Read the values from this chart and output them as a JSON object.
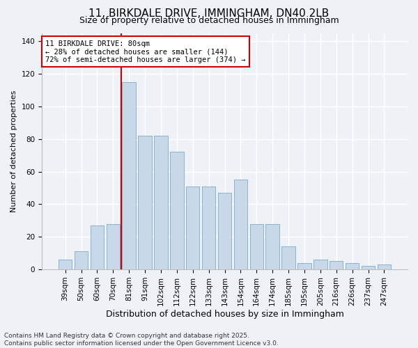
{
  "title": "11, BIRKDALE DRIVE, IMMINGHAM, DN40 2LB",
  "subtitle": "Size of property relative to detached houses in Immingham",
  "xlabel": "Distribution of detached houses by size in Immingham",
  "ylabel": "Number of detached properties",
  "categories": [
    "39sqm",
    "50sqm",
    "60sqm",
    "70sqm",
    "81sqm",
    "91sqm",
    "102sqm",
    "112sqm",
    "122sqm",
    "133sqm",
    "143sqm",
    "154sqm",
    "164sqm",
    "174sqm",
    "185sqm",
    "195sqm",
    "205sqm",
    "216sqm",
    "226sqm",
    "237sqm",
    "247sqm"
  ],
  "values": [
    6,
    11,
    27,
    28,
    115,
    82,
    82,
    72,
    51,
    51,
    47,
    55,
    28,
    28,
    14,
    4,
    6,
    5,
    4,
    2,
    3
  ],
  "bar_color": "#c8d8e8",
  "bar_edge_color": "#7aaac8",
  "vline_color": "#cc0000",
  "annotation_line1": "11 BIRKDALE DRIVE: 80sqm",
  "annotation_line2": "← 28% of detached houses are smaller (144)",
  "annotation_line3": "72% of semi-detached houses are larger (374) →",
  "annotation_box_color": "#cc0000",
  "ylim": [
    0,
    145
  ],
  "yticks": [
    0,
    20,
    40,
    60,
    80,
    100,
    120,
    140
  ],
  "background_color": "#eef2f7",
  "grid_color": "#ffffff",
  "footer_text": "Contains HM Land Registry data © Crown copyright and database right 2025.\nContains public sector information licensed under the Open Government Licence v3.0.",
  "title_fontsize": 11,
  "subtitle_fontsize": 9,
  "xlabel_fontsize": 9,
  "ylabel_fontsize": 8,
  "tick_fontsize": 7.5,
  "annotation_fontsize": 7.5,
  "footer_fontsize": 6.5
}
